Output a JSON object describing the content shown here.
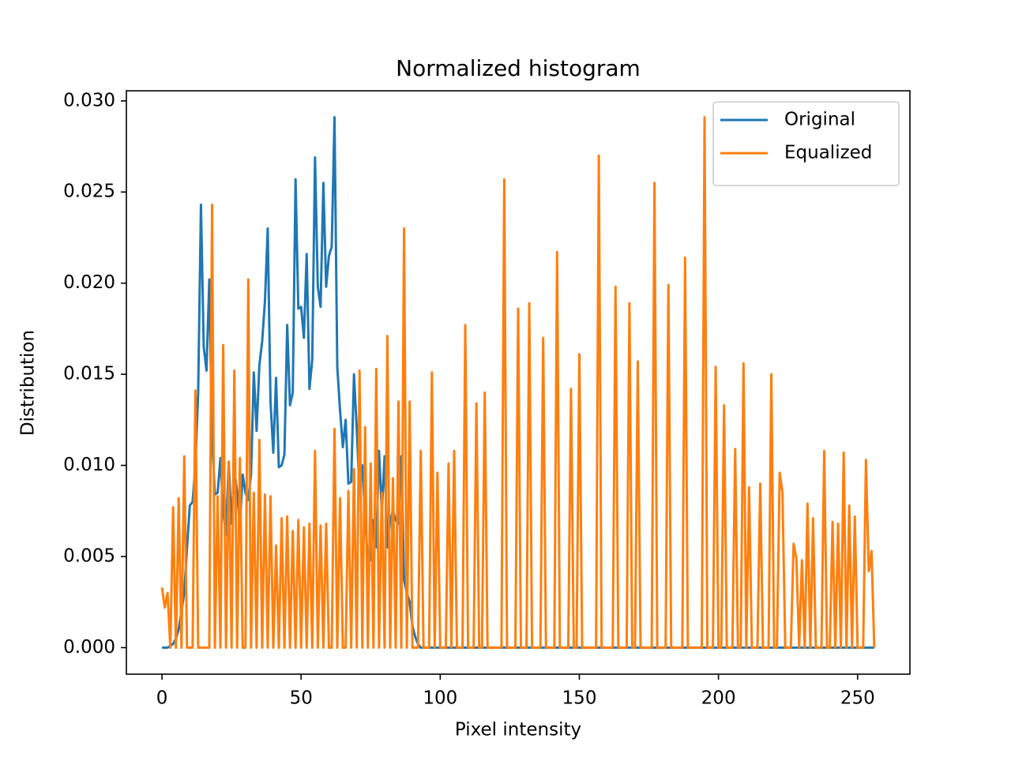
{
  "chart_data": {
    "type": "line",
    "title": "Normalized histogram",
    "xlabel": "Pixel intensity",
    "ylabel": "Distribution",
    "x": [
      0,
      1,
      2,
      3,
      4,
      5,
      6,
      7,
      8,
      9,
      10,
      11,
      12,
      13,
      14,
      15,
      16,
      17,
      18,
      19,
      20,
      21,
      22,
      23,
      24,
      25,
      26,
      27,
      28,
      29,
      30,
      31,
      32,
      33,
      34,
      35,
      36,
      37,
      38,
      39,
      40,
      41,
      42,
      43,
      44,
      45,
      46,
      47,
      48,
      49,
      50,
      51,
      52,
      53,
      54,
      55,
      56,
      57,
      58,
      59,
      60,
      61,
      62,
      63,
      64,
      65,
      66,
      67,
      68,
      69,
      70,
      71,
      72,
      73,
      74,
      75,
      76,
      77,
      78,
      79,
      80,
      81,
      82,
      83,
      84,
      85,
      86,
      87,
      88,
      89,
      90,
      91,
      92,
      93,
      94,
      95,
      96,
      97,
      98,
      99,
      100,
      101,
      102,
      103,
      104,
      105,
      106,
      107,
      108,
      109,
      110,
      111,
      112,
      113,
      114,
      115,
      116,
      117,
      118,
      119,
      120,
      121,
      122,
      123,
      124,
      125,
      126,
      127,
      128,
      129,
      130,
      131,
      132,
      133,
      134,
      135,
      136,
      137,
      138,
      139,
      140,
      141,
      142,
      143,
      144,
      145,
      146,
      147,
      148,
      149,
      150,
      151,
      152,
      153,
      154,
      155,
      156,
      157,
      158,
      159,
      160,
      161,
      162,
      163,
      164,
      165,
      166,
      167,
      168,
      169,
      170,
      171,
      172,
      173,
      174,
      175,
      176,
      177,
      178,
      179,
      180,
      181,
      182,
      183,
      184,
      185,
      186,
      187,
      188,
      189,
      190,
      191,
      192,
      193,
      194,
      195,
      196,
      197,
      198,
      199,
      200,
      201,
      202,
      203,
      204,
      205,
      206,
      207,
      208,
      209,
      210,
      211,
      212,
      213,
      214,
      215,
      216,
      217,
      218,
      219,
      220,
      221,
      222,
      223,
      224,
      225,
      226,
      227,
      228,
      229,
      230,
      231,
      232,
      233,
      234,
      235,
      236,
      237,
      238,
      239,
      240,
      241,
      242,
      243,
      244,
      245,
      246,
      247,
      248,
      249,
      250,
      251,
      252,
      253,
      254,
      255,
      256
    ],
    "series": [
      {
        "name": "Original",
        "color": "#1f77b4",
        "values": [
          0,
          0,
          0,
          0.0001,
          0.0002,
          0.0005,
          0.001,
          0.002,
          0.003,
          0.0055,
          0.0078,
          0.008,
          0.01,
          0.014,
          0.0243,
          0.0165,
          0.0152,
          0.0202,
          0.0115,
          0.0084,
          0.0085,
          0.0104,
          0.0075,
          0.0062,
          0.0102,
          0.0068,
          0.0098,
          0.0085,
          0.0067,
          0.0095,
          0.0085,
          0.0081,
          0.0095,
          0.0151,
          0.0119,
          0.0155,
          0.0168,
          0.019,
          0.023,
          0.0135,
          0.0107,
          0.0148,
          0.0099,
          0.01,
          0.0106,
          0.0177,
          0.0133,
          0.014,
          0.0257,
          0.0186,
          0.0187,
          0.017,
          0.0216,
          0.0142,
          0.0158,
          0.0269,
          0.0198,
          0.0187,
          0.0255,
          0.0198,
          0.0215,
          0.022,
          0.0291,
          0.0154,
          0.013,
          0.011,
          0.0125,
          0.009,
          0.0091,
          0.015,
          0.012,
          0.0085,
          0.01,
          0.0072,
          0.0047,
          0.0048,
          0.007,
          0.0055,
          0.0108,
          0.0075,
          0.0105,
          0.0055,
          0.007,
          0.0075,
          0.007,
          0.0068,
          0.0105,
          0.0037,
          0.003,
          0.0025,
          0.0012,
          0.0006,
          0.0002,
          0,
          0,
          0,
          0,
          0,
          0,
          0,
          0,
          0,
          0,
          0,
          0,
          0,
          0,
          0,
          0,
          0,
          0,
          0,
          0,
          0,
          0,
          0,
          0,
          0,
          0,
          0,
          0,
          0,
          0,
          0,
          0,
          0,
          0,
          0,
          0,
          0,
          0,
          0,
          0,
          0,
          0,
          0,
          0,
          0,
          0,
          0,
          0,
          0,
          0,
          0,
          0,
          0,
          0,
          0,
          0,
          0,
          0,
          0,
          0,
          0,
          0,
          0,
          0,
          0,
          0,
          0,
          0,
          0,
          0,
          0,
          0,
          0,
          0,
          0,
          0,
          0,
          0,
          0,
          0,
          0,
          0,
          0,
          0,
          0,
          0,
          0,
          0,
          0,
          0,
          0,
          0,
          0,
          0,
          0,
          0,
          0,
          0,
          0,
          0,
          0,
          0,
          0,
          0,
          0,
          0,
          0,
          0,
          0,
          0,
          0,
          0,
          0,
          0,
          0,
          0,
          0,
          0,
          0,
          0,
          0,
          0,
          0,
          0,
          0,
          0,
          0,
          0,
          0,
          0,
          0,
          0,
          0,
          0,
          0,
          0,
          0,
          0,
          0,
          0,
          0,
          0,
          0,
          0,
          0,
          0,
          0,
          0,
          0,
          0,
          0,
          0,
          0,
          0,
          0,
          0,
          0,
          0,
          0,
          0,
          0,
          0,
          0,
          0
        ]
      },
      {
        "name": "Equalized",
        "color": "#ff7f0e",
        "values": [
          0.0033,
          0.0022,
          0.003,
          0,
          0.0077,
          0,
          0.0082,
          0,
          0.0105,
          0,
          0,
          0,
          0.0141,
          0,
          0,
          0,
          0,
          0,
          0.0243,
          0,
          0.0083,
          0,
          0.0166,
          0,
          0.0102,
          0,
          0.0152,
          0,
          0.0104,
          0,
          0,
          0.0202,
          0,
          0.0085,
          0,
          0.0114,
          0,
          0.0084,
          0,
          0.0083,
          0,
          0.0056,
          0,
          0.0071,
          0,
          0.0072,
          0,
          0.0064,
          0,
          0.007,
          0,
          0.0066,
          0,
          0.0068,
          0,
          0.0108,
          0,
          0.0067,
          0,
          0.0068,
          0,
          0,
          0.012,
          0,
          0.0082,
          0,
          0,
          0.0086,
          0,
          0.0098,
          0,
          0.0152,
          0,
          0.0121,
          0,
          0.0101,
          0,
          0.0153,
          0,
          0.0085,
          0,
          0.0171,
          0,
          0.0093,
          0,
          0.0135,
          0,
          0.023,
          0,
          0.0135,
          0,
          0,
          0,
          0.0108,
          0,
          0,
          0,
          0.0151,
          0,
          0.0096,
          0,
          0,
          0,
          0.0101,
          0,
          0.0108,
          0,
          0,
          0,
          0.0177,
          0,
          0,
          0,
          0.0134,
          0,
          0,
          0.014,
          0,
          0,
          0,
          0,
          0,
          0,
          0.0257,
          0,
          0,
          0,
          0,
          0.0186,
          0,
          0,
          0,
          0.0189,
          0,
          0,
          0,
          0,
          0.017,
          0,
          0,
          0,
          0,
          0.0217,
          0,
          0,
          0,
          0,
          0.0142,
          0,
          0,
          0.0161,
          0,
          0,
          0,
          0,
          0,
          0,
          0.027,
          0,
          0,
          0,
          0,
          0,
          0.0198,
          0,
          0,
          0,
          0,
          0.0189,
          0,
          0,
          0.0157,
          0,
          0,
          0,
          0,
          0,
          0.0255,
          0,
          0,
          0,
          0,
          0.0199,
          0,
          0,
          0,
          0,
          0,
          0.0214,
          0,
          0,
          0,
          0,
          0,
          0,
          0.0291,
          0,
          0,
          0,
          0.0154,
          0,
          0,
          0.0133,
          0,
          0,
          0,
          0.0109,
          0,
          0,
          0.0156,
          0,
          0.0088,
          0,
          0,
          0,
          0.009,
          0,
          0,
          0,
          0.015,
          0,
          0,
          0.0096,
          0.0085,
          0,
          0,
          0,
          0.0057,
          0.0049,
          0,
          0.0048,
          0,
          0.0079,
          0,
          0.0071,
          0,
          0,
          0,
          0.0108,
          0,
          0,
          0.0069,
          0,
          0.0068,
          0,
          0.0107,
          0,
          0.0078,
          0,
          0.0072,
          0,
          0,
          0,
          0.0103,
          0.0042,
          0.0053,
          0
        ]
      }
    ],
    "xlim": [
      -12.8,
      268.8
    ],
    "xticks": [
      0,
      50,
      100,
      150,
      200,
      250
    ],
    "ylim": [
      -0.001455,
      0.030555
    ],
    "yticks": [
      {
        "value": 0,
        "label": "0.000"
      },
      {
        "value": 0.005,
        "label": "0.005"
      },
      {
        "value": 0.01,
        "label": "0.010"
      },
      {
        "value": 0.015,
        "label": "0.015"
      },
      {
        "value": 0.02,
        "label": "0.020"
      },
      {
        "value": 0.025,
        "label": "0.025"
      },
      {
        "value": 0.03,
        "label": "0.030"
      }
    ],
    "legend": "upper right",
    "grid": false
  }
}
